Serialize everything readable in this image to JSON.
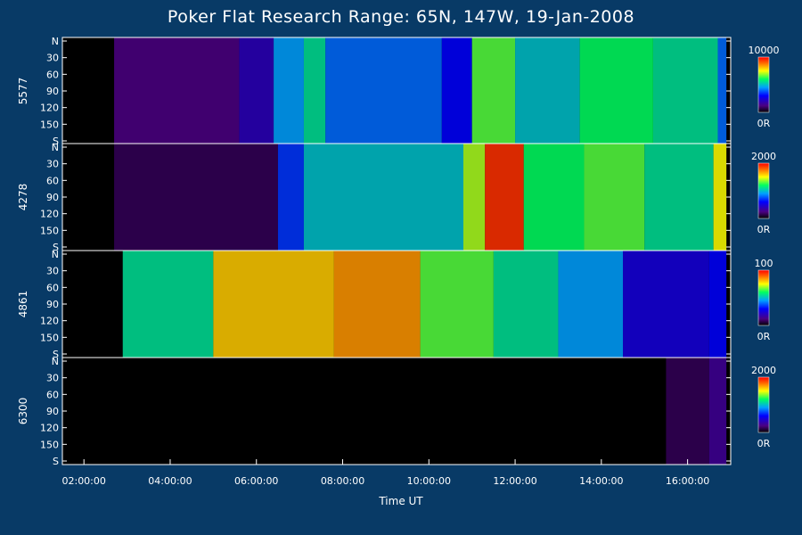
{
  "chart_data": {
    "type": "heatmap",
    "title": "Poker Flat Research Range: 65N, 147W, 19-Jan-2008",
    "xlabel": "Time UT",
    "xlim": [
      1.5,
      17.0
    ],
    "x_ticks": [
      "02:00:00",
      "04:00:00",
      "06:00:00",
      "08:00:00",
      "10:00:00",
      "12:00:00",
      "14:00:00",
      "16:00:00"
    ],
    "y_ticks": [
      "N",
      "30",
      "60",
      "90",
      "120",
      "150",
      "S"
    ],
    "panels": [
      {
        "ylabel": "5577",
        "colorbar": {
          "max_label": "10000",
          "min_label": "0R",
          "max": 10000,
          "min": 0
        },
        "bands": [
          {
            "t": 2.7,
            "level": 0.12
          },
          {
            "t": 5.6,
            "level": 0.2
          },
          {
            "t": 6.4,
            "level": 0.45
          },
          {
            "t": 7.1,
            "level": 0.55
          },
          {
            "t": 7.6,
            "level": 0.4
          },
          {
            "t": 10.3,
            "level": 0.3
          },
          {
            "t": 11.0,
            "level": 0.65
          },
          {
            "t": 12.0,
            "level": 0.5
          },
          {
            "t": 13.5,
            "level": 0.6
          },
          {
            "t": 15.2,
            "level": 0.55
          },
          {
            "t": 16.7,
            "level": 0.4
          }
        ]
      },
      {
        "ylabel": "4278",
        "colorbar": {
          "max_label": "2000",
          "min_label": "0R",
          "max": 2000,
          "min": 0
        },
        "bands": [
          {
            "t": 2.7,
            "level": 0.08
          },
          {
            "t": 6.5,
            "level": 0.35
          },
          {
            "t": 7.1,
            "level": 0.5
          },
          {
            "t": 10.8,
            "level": 0.7
          },
          {
            "t": 11.3,
            "level": 0.95
          },
          {
            "t": 12.2,
            "level": 0.6
          },
          {
            "t": 13.6,
            "level": 0.65
          },
          {
            "t": 15.0,
            "level": 0.55
          },
          {
            "t": 16.6,
            "level": 0.75
          }
        ]
      },
      {
        "ylabel": "4861",
        "colorbar": {
          "max_label": "100",
          "min_label": "0R",
          "max": 100,
          "min": 0
        },
        "bands": [
          {
            "t": 2.9,
            "level": 0.55
          },
          {
            "t": 5.0,
            "level": 0.8
          },
          {
            "t": 7.8,
            "level": 0.85
          },
          {
            "t": 9.8,
            "level": 0.65
          },
          {
            "t": 11.5,
            "level": 0.55
          },
          {
            "t": 13.0,
            "level": 0.45
          },
          {
            "t": 14.5,
            "level": 0.25
          },
          {
            "t": 16.5,
            "level": 0.3
          }
        ]
      },
      {
        "ylabel": "6300",
        "colorbar": {
          "max_label": "2000",
          "min_label": "0R",
          "max": 2000,
          "min": 0
        },
        "bands": [
          {
            "t": 15.5,
            "level": 0.08
          },
          {
            "t": 16.5,
            "level": 0.15
          }
        ]
      }
    ],
    "grid": false
  }
}
